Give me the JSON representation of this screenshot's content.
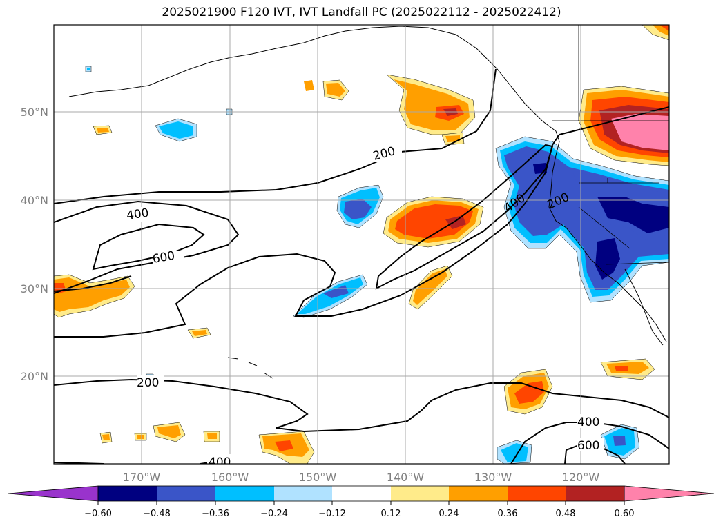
{
  "title": "2025021900 F120 IVT, IVT Landfall PC (2025022112 - 2025022412)",
  "lat_ticks": [
    "50°N",
    "40°N",
    "30°N",
    "20°N"
  ],
  "lon_ticks": [
    "170°W",
    "160°W",
    "150°W",
    "140°W",
    "130°W",
    "120°W"
  ],
  "ivt_contour_labels": [
    {
      "id": "ivt-label-400-west",
      "text": "400"
    },
    {
      "id": "ivt-label-600-west",
      "text": "600"
    },
    {
      "id": "ivt-label-200-north",
      "text": "200"
    },
    {
      "id": "ivt-label-400-coast",
      "text": "400"
    },
    {
      "id": "ivt-label-200-coast",
      "text": "200"
    },
    {
      "id": "ivt-label-200-south",
      "text": "200"
    },
    {
      "id": "ivt-label-400-bottom",
      "text": "400"
    },
    {
      "id": "ivt-label-400-se",
      "text": "400"
    },
    {
      "id": "ivt-label-600-se",
      "text": "600"
    }
  ],
  "colorbar": {
    "colors": [
      "#9933cc",
      "#000080",
      "#3a55c8",
      "#00bfff",
      "#b0e2ff",
      "#ffffff",
      "#ffeb8a",
      "#ff9f00",
      "#ff4500",
      "#b22222",
      "#ff82ab"
    ],
    "tick_labels": [
      "−0.60",
      "−0.48",
      "−0.36",
      "−0.24",
      "−0.12",
      "0.12",
      "0.24",
      "0.36",
      "0.48",
      "0.60"
    ]
  },
  "colors": {
    "light_blue": "#b0e2ff",
    "blue": "#00bfff",
    "mid_blue": "#3a55c8",
    "navy": "#000080",
    "yellow": "#ffeb8a",
    "orange": "#ff9f00",
    "red_orange": "#ff4500",
    "dark_red": "#b22222",
    "pink": "#ff82ab"
  }
}
